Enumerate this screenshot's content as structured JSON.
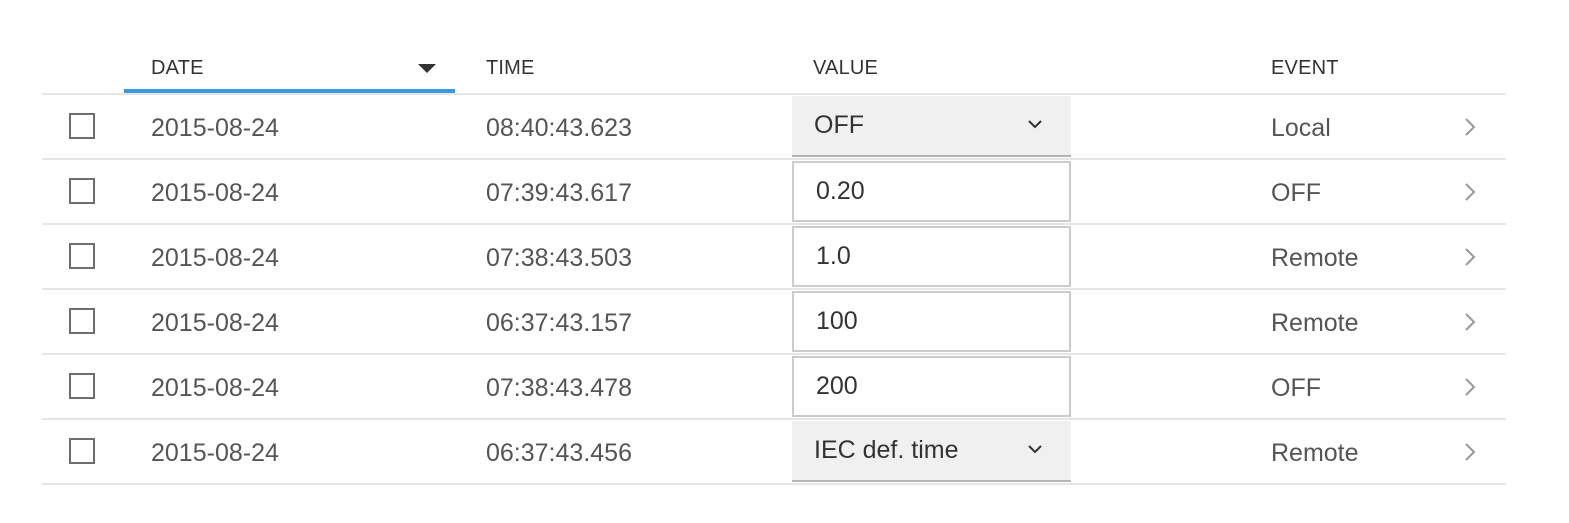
{
  "columns": {
    "date": "DATE",
    "time": "TIME",
    "value": "VALUE",
    "event": "EVENT"
  },
  "sort": {
    "column": "date",
    "direction": "descending",
    "accent_color": "#3b99e0"
  },
  "rows": [
    {
      "date": "2015-08-24",
      "time": "08:40:43.623",
      "value": "OFF",
      "value_type": "select",
      "event": "Local"
    },
    {
      "date": "2015-08-24",
      "time": "07:39:43.617",
      "value": "0.20",
      "value_type": "input",
      "event": "OFF"
    },
    {
      "date": "2015-08-24",
      "time": "07:38:43.503",
      "value": "1.0",
      "value_type": "input",
      "event": "Remote"
    },
    {
      "date": "2015-08-24",
      "time": "06:37:43.157",
      "value": "100",
      "value_type": "input",
      "event": "Remote"
    },
    {
      "date": "2015-08-24",
      "time": "07:38:43.478",
      "value": "200",
      "value_type": "input",
      "event": "OFF"
    },
    {
      "date": "2015-08-24",
      "time": "06:37:43.456",
      "value": "IEC def. time",
      "value_type": "select",
      "event": "Remote"
    }
  ],
  "icons": {
    "sort": "caret-down-icon",
    "select": "chevron-down-icon",
    "row": "chevron-right-icon"
  }
}
